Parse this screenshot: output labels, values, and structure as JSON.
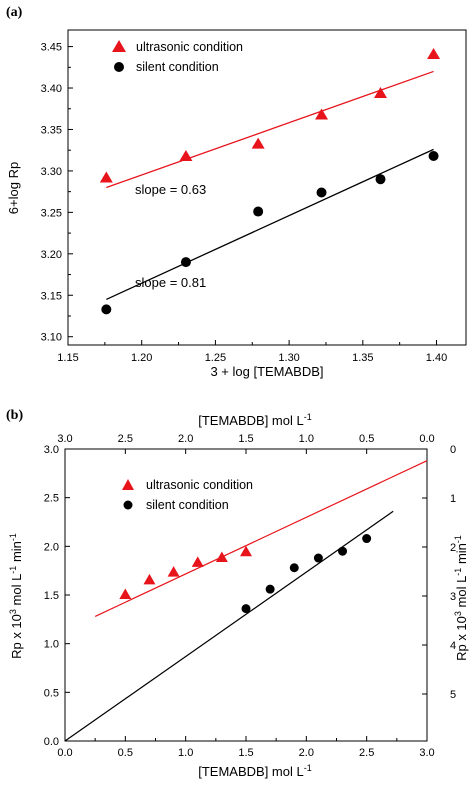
{
  "chart_data": [
    {
      "panel_label": "(a)",
      "type": "scatter",
      "xlabel": "3 + log [TEMABDB]",
      "ylabel": "6+log Rp",
      "xlim": [
        1.15,
        1.42
      ],
      "ylim": [
        3.09,
        3.47
      ],
      "x_ticks": [
        "1.15",
        "1.20",
        "1.25",
        "1.30",
        "1.35",
        "1.40"
      ],
      "y_ticks": [
        "3.10",
        "3.15",
        "3.20",
        "3.25",
        "3.30",
        "3.35",
        "3.40",
        "3.45"
      ],
      "legend_position": "top-left",
      "series": [
        {
          "name": "ultrasonic condition",
          "marker": "triangle",
          "color": "#e8141b",
          "x": [
            1.176,
            1.23,
            1.279,
            1.322,
            1.362,
            1.398
          ],
          "y": [
            3.292,
            3.318,
            3.333,
            3.368,
            3.394,
            3.441
          ],
          "fit": {
            "x": [
              1.176,
              1.398
            ],
            "y": [
              3.28,
              3.42
            ]
          }
        },
        {
          "name": "silent condition",
          "marker": "circle",
          "color": "#000000",
          "x": [
            1.176,
            1.23,
            1.279,
            1.322,
            1.362,
            1.398
          ],
          "y": [
            3.133,
            3.19,
            3.251,
            3.274,
            3.29,
            3.318
          ],
          "fit": {
            "x": [
              1.176,
              1.398
            ],
            "y": [
              3.145,
              3.326
            ]
          }
        }
      ],
      "annotations": [
        "slope = 0.63",
        "slope = 0.81"
      ]
    },
    {
      "panel_label": "(b)",
      "type": "scatter",
      "xlabel": "[TEMABDB] mol L",
      "xlabel_superscript": "-1",
      "top_xlabel": "[TEMABDB] mol L",
      "top_xlabel_superscript": "-1",
      "ylabel": "Rp x 10",
      "ylabel_sup1": "3",
      "ylabel_mid": " mol L",
      "ylabel_sup2": "-1",
      "ylabel_end": " min",
      "ylabel_sup3": "-1",
      "right_ylabel": "Rp x 10",
      "xlim": [
        0.0,
        3.0
      ],
      "ylim": [
        0.0,
        3.0
      ],
      "x_ticks": [
        "0.0",
        "0.5",
        "1.0",
        "1.5",
        "2.0",
        "2.5",
        "3.0"
      ],
      "top_x_ticks": [
        "3.0",
        "2.5",
        "2.0",
        "1.5",
        "1.0",
        "0.5",
        "0.0"
      ],
      "y_ticks": [
        "0.0",
        "0.5",
        "1.0",
        "1.5",
        "2.0",
        "2.5",
        "3.0"
      ],
      "right_y_ticks": [
        "0",
        "1",
        "2",
        "3",
        "4",
        "5"
      ],
      "legend_position": "top-left",
      "series": [
        {
          "name": "ultrasonic condition",
          "marker": "triangle",
          "color": "#e8141b",
          "x": [
            0.5,
            0.7,
            0.9,
            1.1,
            1.3,
            1.5
          ],
          "y": [
            1.51,
            1.66,
            1.74,
            1.84,
            1.89,
            1.95
          ],
          "fit": {
            "x": [
              0.25,
              3.0
            ],
            "y": [
              1.28,
              2.88
            ]
          }
        },
        {
          "name": "silent condition",
          "marker": "circle",
          "color": "#000000",
          "x": [
            1.5,
            1.7,
            1.9,
            2.1,
            2.3,
            2.5
          ],
          "y": [
            1.36,
            1.56,
            1.78,
            1.88,
            1.95,
            2.08
          ],
          "fit": {
            "x": [
              0.0,
              2.72
            ],
            "y": [
              0.0,
              2.36
            ]
          }
        }
      ]
    }
  ]
}
